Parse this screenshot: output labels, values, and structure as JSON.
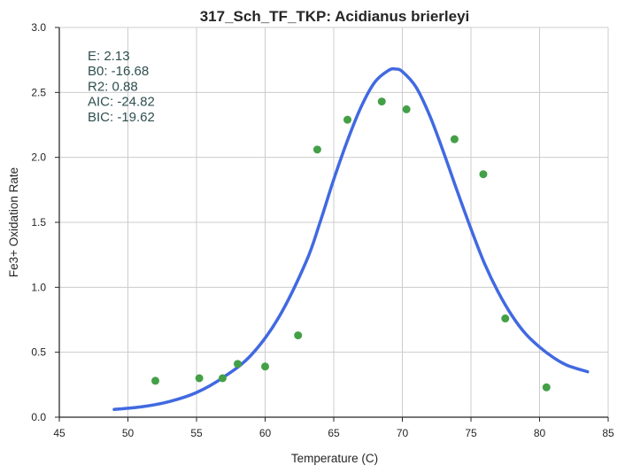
{
  "chart_data": {
    "type": "scatter",
    "title": "317_Sch_TF_TKP: Acidianus brierleyi",
    "xlabel": "Temperature (C)",
    "ylabel": "Fe3+ Oxidation Rate",
    "xlim": [
      45,
      85
    ],
    "ylim": [
      0,
      3.0
    ],
    "x_ticks": [
      "45",
      "50",
      "55",
      "60",
      "65",
      "70",
      "75",
      "80",
      "85"
    ],
    "y_ticks": [
      "0.0",
      "0.5",
      "1.0",
      "1.5",
      "2.0",
      "2.5",
      "3.0"
    ],
    "grid": true,
    "stats": [
      "E:  2.13",
      "B0:  -16.68",
      "R2:  0.88",
      "AIC: -24.82",
      "BIC: -19.62"
    ],
    "points": {
      "color": "#43a047",
      "x": [
        52.0,
        55.2,
        56.9,
        58.0,
        60.0,
        62.4,
        63.8,
        66.0,
        68.5,
        70.3,
        73.8,
        75.9,
        77.5,
        80.5
      ],
      "y": [
        0.28,
        0.3,
        0.3,
        0.41,
        0.39,
        0.63,
        2.06,
        2.29,
        2.43,
        2.37,
        2.14,
        1.87,
        0.76,
        0.23
      ]
    },
    "fit_curve": {
      "color": "#4169e1",
      "x": [
        49.0,
        51.0,
        53.0,
        55.0,
        57.0,
        59.0,
        61.0,
        63.0,
        64.0,
        65.0,
        66.0,
        67.0,
        68.0,
        69.0,
        69.5,
        70.0,
        71.0,
        72.0,
        73.0,
        74.0,
        75.0,
        76.0,
        77.0,
        78.0,
        79.0,
        80.0,
        81.0,
        82.0,
        83.5
      ],
      "y": [
        0.06,
        0.08,
        0.12,
        0.19,
        0.31,
        0.48,
        0.77,
        1.2,
        1.5,
        1.83,
        2.13,
        2.39,
        2.58,
        2.67,
        2.68,
        2.66,
        2.54,
        2.32,
        2.04,
        1.74,
        1.45,
        1.18,
        0.96,
        0.78,
        0.64,
        0.54,
        0.46,
        0.4,
        0.35
      ]
    }
  }
}
